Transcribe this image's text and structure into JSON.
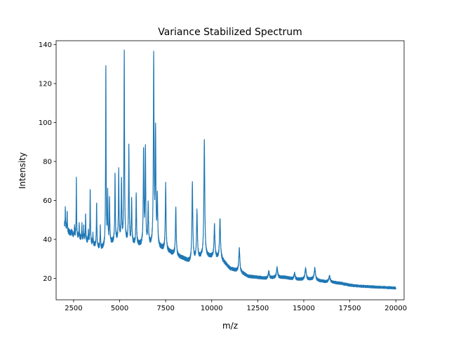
{
  "chart_data": {
    "type": "line",
    "title": "Variance Stabilized Spectrum",
    "xlabel": "m/z",
    "ylabel": "Intensity",
    "xlim": [
      1550,
      20450
    ],
    "ylim": [
      9,
      142
    ],
    "xticks": [
      2500,
      5000,
      7500,
      10000,
      12500,
      15000,
      17500,
      20000
    ],
    "yticks": [
      20,
      40,
      60,
      80,
      100,
      120,
      140
    ],
    "grid": false,
    "legend": "none",
    "series": [
      {
        "color": "#1f77b4",
        "baseline": [
          [
            2000,
            47
          ],
          [
            2200,
            44
          ],
          [
            2500,
            42
          ],
          [
            3000,
            40
          ],
          [
            3500,
            37.5
          ],
          [
            4000,
            35
          ],
          [
            4500,
            38
          ],
          [
            5000,
            40
          ],
          [
            5500,
            38
          ],
          [
            6000,
            37
          ],
          [
            6500,
            37
          ],
          [
            7000,
            36
          ],
          [
            7500,
            34.5
          ],
          [
            8000,
            32
          ],
          [
            8500,
            30
          ],
          [
            8800,
            28.5
          ],
          [
            9000,
            29.5
          ],
          [
            9500,
            31
          ],
          [
            10000,
            31
          ],
          [
            10500,
            30
          ],
          [
            11000,
            25
          ],
          [
            11500,
            23.5
          ],
          [
            12000,
            21
          ],
          [
            12500,
            20.5
          ],
          [
            13000,
            20
          ],
          [
            13500,
            20.5
          ],
          [
            14000,
            20.5
          ],
          [
            14500,
            19.5
          ],
          [
            15000,
            19.5
          ],
          [
            15500,
            19.5
          ],
          [
            16000,
            18.5
          ],
          [
            16500,
            18
          ],
          [
            17000,
            17.5
          ],
          [
            17500,
            16.5
          ],
          [
            18000,
            16
          ],
          [
            18500,
            15.8
          ],
          [
            19000,
            15.5
          ],
          [
            19500,
            15.3
          ],
          [
            20000,
            15
          ]
        ],
        "peaks": [
          [
            2050,
            56
          ],
          [
            2150,
            55
          ],
          [
            2400,
            45
          ],
          [
            2550,
            46
          ],
          [
            2650,
            71
          ],
          [
            2800,
            47
          ],
          [
            2950,
            48
          ],
          [
            3050,
            46
          ],
          [
            3150,
            53
          ],
          [
            3300,
            44
          ],
          [
            3400,
            66
          ],
          [
            3550,
            42
          ],
          [
            3750,
            59
          ],
          [
            3950,
            47
          ],
          [
            4250,
            127
          ],
          [
            4350,
            62
          ],
          [
            4450,
            60
          ],
          [
            4750,
            73
          ],
          [
            4950,
            75
          ],
          [
            5100,
            70
          ],
          [
            5250,
            135
          ],
          [
            5500,
            87
          ],
          [
            5650,
            60
          ],
          [
            5900,
            63
          ],
          [
            6300,
            85.5
          ],
          [
            6400,
            85.5
          ],
          [
            6550,
            57
          ],
          [
            6850,
            132
          ],
          [
            6950,
            93
          ],
          [
            7050,
            60
          ],
          [
            7500,
            68
          ],
          [
            8050,
            56
          ],
          [
            8950,
            68.5
          ],
          [
            9200,
            54
          ],
          [
            9600,
            90.5
          ],
          [
            10150,
            47
          ],
          [
            10450,
            50.5
          ],
          [
            11500,
            35.5
          ],
          [
            13100,
            23.5
          ],
          [
            13550,
            25.5
          ],
          [
            14500,
            22.5
          ],
          [
            15100,
            25
          ],
          [
            15600,
            25
          ],
          [
            16400,
            21
          ]
        ]
      }
    ]
  }
}
